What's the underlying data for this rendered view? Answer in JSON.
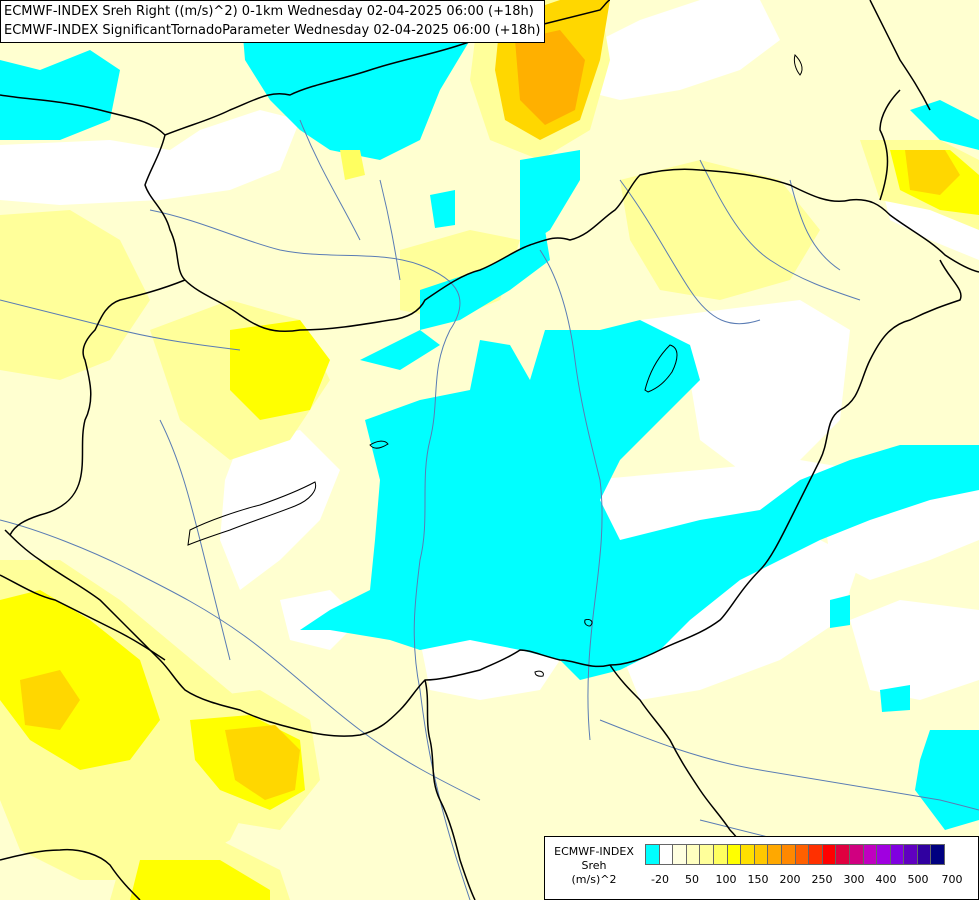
{
  "header": {
    "line1": "ECMWF-INDEX Sreh Right ((m/s)^2) 0-1km Wednesday 02-04-2025 06:00 (+18h)",
    "line2": "ECMWF-INDEX SignificantTornadoParameter Wednesday 02-04-2025 06:00 (+18h)"
  },
  "legend": {
    "line1": "ECMWF-INDEX",
    "line2": "Sreh",
    "line3": "(m/s)^2",
    "colors": [
      "#00ffff",
      "#ffffff",
      "#ffffe0",
      "#ffffc0",
      "#ffff9a",
      "#ffff60",
      "#ffff00",
      "#ffe000",
      "#ffc800",
      "#ffa800",
      "#ff8800",
      "#ff6000",
      "#ff3000",
      "#ff0000",
      "#e00040",
      "#d00080",
      "#c000c0",
      "#a000e0",
      "#8000e0",
      "#6000c0",
      "#3000a0",
      "#000080"
    ],
    "ticks": [
      "-20",
      "50",
      "100",
      "150",
      "200",
      "250",
      "300",
      "400",
      "500",
      "700"
    ]
  },
  "colors": {
    "cyan": "#00ffff",
    "white": "#ffffff",
    "pale_yellow": "#ffffc8",
    "light_yellow": "#ffff96",
    "yellow": "#ffff00",
    "gold": "#ffd700",
    "orange": "#ffb000",
    "borders": "#000000",
    "rivers": "#5a7cb4"
  }
}
